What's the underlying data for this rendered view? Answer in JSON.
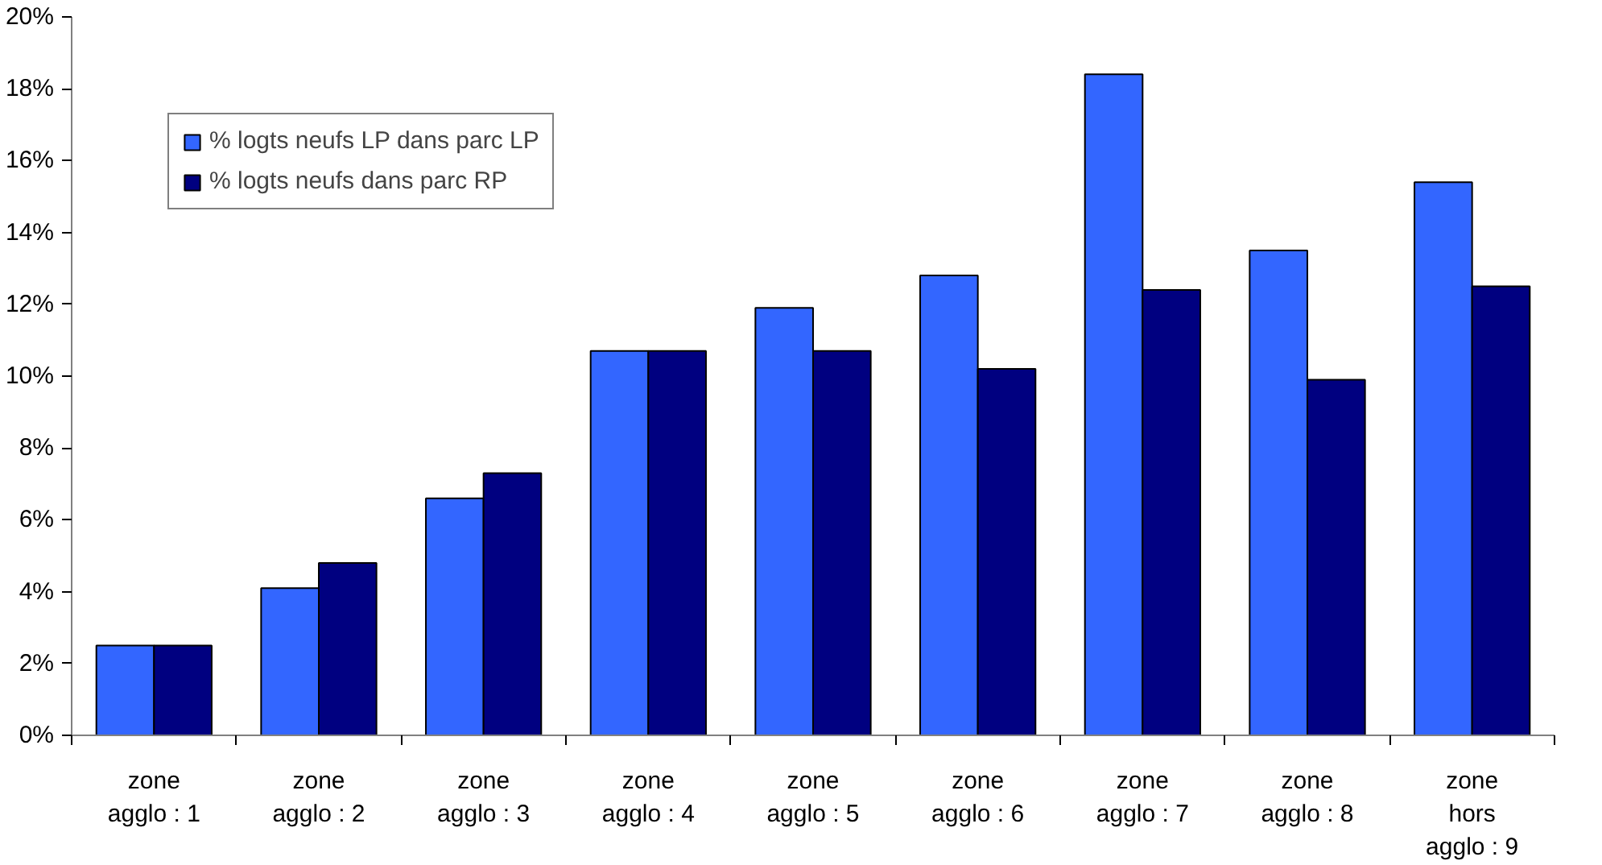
{
  "chart_data": {
    "type": "bar",
    "categories": [
      "zone\nagglo : 1",
      "zone\nagglo : 2",
      "zone\nagglo : 3",
      "zone\nagglo : 4",
      "zone\nagglo : 5",
      "zone\nagglo : 6",
      "zone\nagglo : 7",
      "zone\nagglo : 8",
      "zone\nhors\nagglo : 9"
    ],
    "series": [
      {
        "name": "% logts neufs LP dans parc LP",
        "color": "#3366ff",
        "values": [
          2.5,
          4.1,
          6.6,
          10.7,
          11.9,
          12.8,
          18.4,
          13.5,
          15.4
        ]
      },
      {
        "name": "% logts neufs dans parc RP",
        "color": "#000080",
        "values": [
          2.5,
          4.8,
          7.3,
          10.7,
          10.7,
          10.2,
          12.4,
          9.9,
          12.5
        ]
      }
    ],
    "ylim": [
      0,
      20
    ],
    "yticks": [
      {
        "value": 0,
        "label": "0%"
      },
      {
        "value": 2,
        "label": "2%"
      },
      {
        "value": 4,
        "label": "4%"
      },
      {
        "value": 6,
        "label": "6%"
      },
      {
        "value": 8,
        "label": "8%"
      },
      {
        "value": 10,
        "label": "10%"
      },
      {
        "value": 12,
        "label": "12%"
      },
      {
        "value": 14,
        "label": "14%"
      },
      {
        "value": 16,
        "label": "16%"
      },
      {
        "value": 18,
        "label": "18%"
      },
      {
        "value": 20,
        "label": "20%"
      }
    ],
    "grid": false,
    "legend": "top left"
  }
}
